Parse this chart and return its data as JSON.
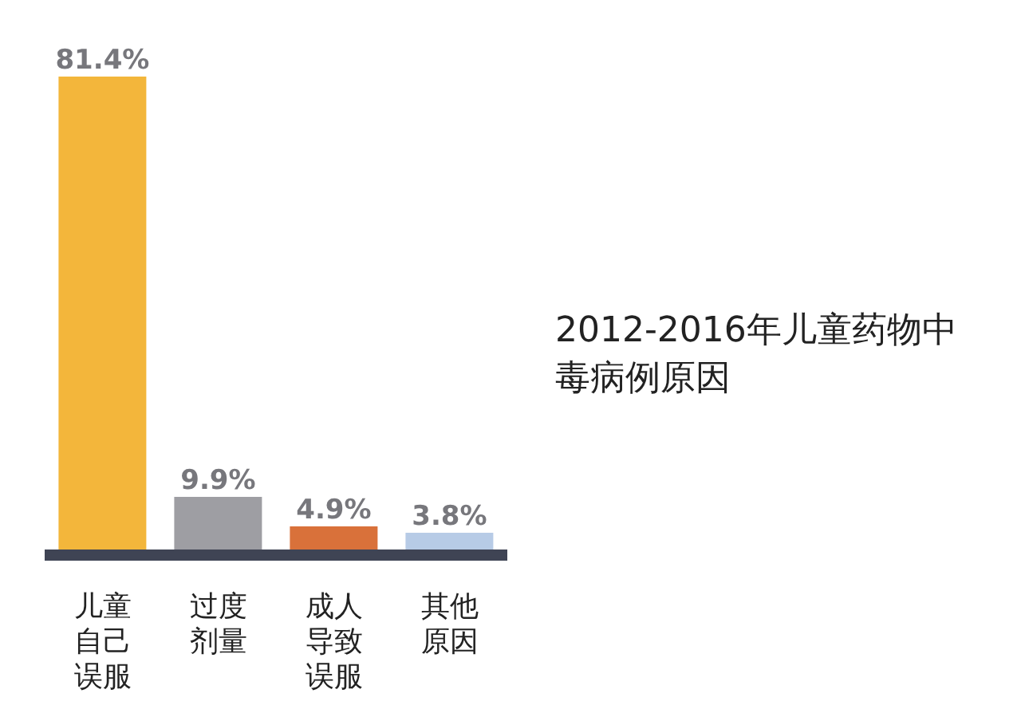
{
  "chart_data": {
    "type": "bar",
    "title": "2012-2016年儿童药物中毒病例原因",
    "categories": [
      "儿童自己误服",
      "过度剂量",
      "成人导致误服",
      "其他原因"
    ],
    "values": [
      81.4,
      9.9,
      4.9,
      3.8
    ],
    "colors": [
      "#f3b63b",
      "#9e9ea3",
      "#d9713a",
      "#b7cbe6"
    ],
    "value_labels": [
      "81.4%",
      "9.9%",
      "4.9%",
      "3.8%"
    ]
  }
}
